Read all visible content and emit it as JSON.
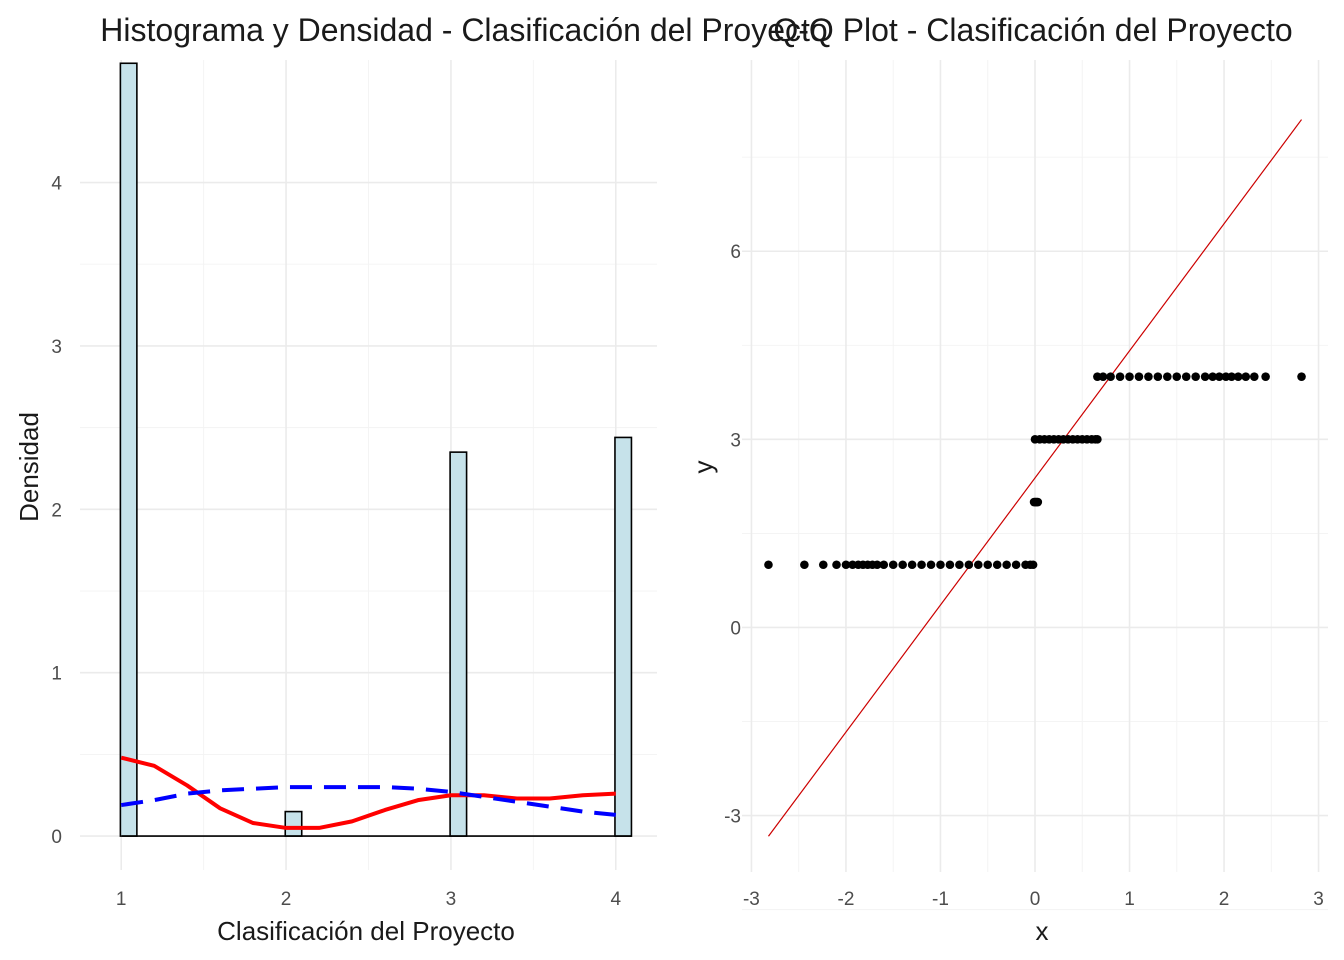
{
  "chart_data": [
    {
      "type": "bar",
      "title": "Histograma y Densidad - Clasificación del Proyecto",
      "xlabel": "Clasificación del Proyecto",
      "ylabel": "Densidad",
      "xlim": [
        0.75,
        4.25
      ],
      "ylim": [
        0,
        4.75
      ],
      "x_ticks": [
        1,
        2,
        3,
        4
      ],
      "y_ticks": [
        0,
        1,
        2,
        3,
        4
      ],
      "grid": true,
      "bars": [
        {
          "x": 1,
          "density": 4.73
        },
        {
          "x": 2,
          "density": 0.15
        },
        {
          "x": 3,
          "density": 2.35
        },
        {
          "x": 4,
          "density": 2.44
        }
      ],
      "bar_fill": "#c6e2ea",
      "series": [
        {
          "style": "solid",
          "color": "#ff0000",
          "x": [
            1.0,
            1.2,
            1.4,
            1.6,
            1.8,
            2.0,
            2.2,
            2.4,
            2.6,
            2.8,
            3.0,
            3.2,
            3.4,
            3.6,
            3.8,
            4.0
          ],
          "y": [
            0.48,
            0.43,
            0.31,
            0.17,
            0.08,
            0.05,
            0.05,
            0.09,
            0.16,
            0.22,
            0.25,
            0.25,
            0.23,
            0.23,
            0.25,
            0.26
          ]
        },
        {
          "style": "dashed",
          "color": "#0000ff",
          "x": [
            1.0,
            1.2,
            1.4,
            1.6,
            1.8,
            2.0,
            2.2,
            2.4,
            2.6,
            2.8,
            3.0,
            3.2,
            3.4,
            3.6,
            3.8,
            4.0
          ],
          "y": [
            0.19,
            0.22,
            0.26,
            0.28,
            0.29,
            0.3,
            0.3,
            0.3,
            0.3,
            0.29,
            0.27,
            0.24,
            0.21,
            0.18,
            0.15,
            0.13
          ]
        }
      ]
    },
    {
      "type": "scatter",
      "title": "Q-Q Plot - Clasificación del Proyecto",
      "xlabel": "x",
      "ylabel": "y",
      "xlim": [
        -3.1,
        3.1
      ],
      "ylim": [
        -3.9,
        9.05
      ],
      "x_ticks": [
        -3,
        -2,
        -1,
        0,
        1,
        2,
        3
      ],
      "y_ticks": [
        -3,
        0,
        3,
        6
      ],
      "grid": true,
      "point_color": "#000000",
      "groups": [
        {
          "y": 1,
          "x": [
            -2.82,
            -2.44,
            -2.24,
            -2.1,
            -2.0,
            -1.93,
            -1.87,
            -1.82,
            -1.77,
            -1.72,
            -1.67,
            -1.6,
            -1.5,
            -1.4,
            -1.3,
            -1.2,
            -1.1,
            -1.0,
            -0.9,
            -0.8,
            -0.7,
            -0.6,
            -0.5,
            -0.4,
            -0.3,
            -0.2,
            -0.1,
            -0.05,
            -0.02
          ]
        },
        {
          "y": 2,
          "x": [
            -0.01,
            0.0,
            0.01,
            0.02,
            0.03
          ]
        },
        {
          "y": 3,
          "x": [
            0.0,
            0.05,
            0.1,
            0.15,
            0.2,
            0.25,
            0.3,
            0.35,
            0.4,
            0.45,
            0.5,
            0.55,
            0.6,
            0.64,
            0.66
          ]
        },
        {
          "y": 4,
          "x": [
            0.66,
            0.72,
            0.8,
            0.9,
            1.0,
            1.1,
            1.2,
            1.3,
            1.4,
            1.5,
            1.6,
            1.7,
            1.8,
            1.88,
            1.95,
            2.02,
            2.08,
            2.15,
            2.23,
            2.32,
            2.44,
            2.82
          ]
        }
      ],
      "reference_line": {
        "color": "#cc0000",
        "x": [
          -2.82,
          2.82
        ],
        "y": [
          -3.33,
          8.1
        ]
      }
    }
  ]
}
